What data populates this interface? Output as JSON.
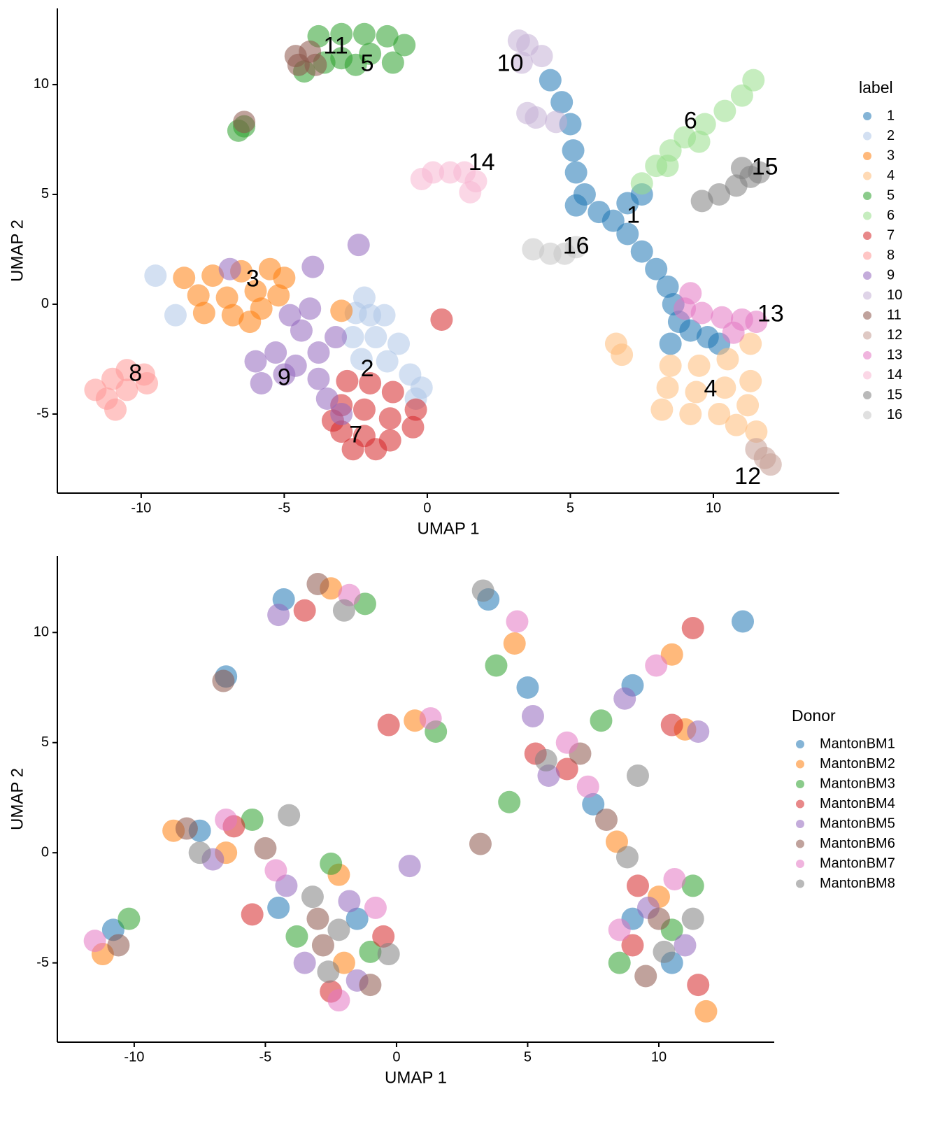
{
  "chart_data": [
    {
      "type": "scatter",
      "xlabel": "UMAP 1",
      "ylabel": "UMAP 2",
      "legend_title": "label",
      "legend_position": "right",
      "xlim": [
        -12.93,
        14.4
      ],
      "ylim": [
        -8.6,
        13.47
      ],
      "xticks": [
        -10,
        -5,
        0,
        5,
        10
      ],
      "yticks": [
        -5,
        0,
        5,
        10
      ],
      "series": [
        {
          "name": "1",
          "color": "#1f77b4",
          "x": [
            4.3,
            4.7,
            5,
            5.1,
            5.2,
            5.5,
            5.2,
            6,
            6.5,
            7,
            7.5,
            7,
            7.5,
            8,
            8.4,
            8.6,
            8.8,
            9.2,
            9.8,
            8.5,
            10.2
          ],
          "y": [
            10.2,
            9.2,
            8.2,
            7,
            6,
            5,
            4.5,
            4.2,
            3.8,
            4.6,
            5,
            3.2,
            2.4,
            1.6,
            0.8,
            0,
            -0.8,
            -1.2,
            -1.5,
            -1.8,
            -1.8
          ]
        },
        {
          "name": "2",
          "color": "#aec7e8",
          "x": [
            -2.5,
            -2,
            -1.5,
            -2.6,
            -1.8,
            -1,
            -2.3,
            -1.4,
            -0.6,
            -0.2,
            -0.4,
            -2.2,
            -9.5,
            -8.8
          ],
          "y": [
            -0.4,
            -0.5,
            -0.5,
            -1.5,
            -1.5,
            -1.8,
            -2.5,
            -2.6,
            -3.2,
            -3.8,
            -4.3,
            0.3,
            1.3,
            -0.5
          ]
        },
        {
          "name": "3",
          "color": "#ff7f0e",
          "x": [
            -8.5,
            -7.5,
            -6.5,
            -5.5,
            -5,
            -8,
            -7,
            -6,
            -5.2,
            -7.8,
            -6.8,
            -5.8,
            -6.2,
            -3
          ],
          "y": [
            1.2,
            1.3,
            1.5,
            1.6,
            1.2,
            0.4,
            0.3,
            0.6,
            0.4,
            -0.4,
            -0.5,
            -0.2,
            -0.8,
            -0.3
          ]
        },
        {
          "name": "4",
          "color": "#ffbb78",
          "x": [
            8.5,
            9.5,
            10.5,
            11.3,
            8.4,
            9.4,
            10.4,
            11.3,
            8.2,
            9.2,
            10.2,
            11.2,
            10.8,
            11.5,
            6.6,
            6.8
          ],
          "y": [
            -2.8,
            -2.8,
            -2.5,
            -1.8,
            -3.8,
            -4,
            -3.8,
            -3.5,
            -4.8,
            -5,
            -5,
            -4.6,
            -5.5,
            -5.8,
            -1.8,
            -2.3
          ]
        },
        {
          "name": "5",
          "color": "#2ca02c",
          "x": [
            -3.8,
            -3,
            -2.2,
            -1.4,
            -0.8,
            -1.2,
            -2,
            -3,
            -3.6,
            -4.3,
            -2.5,
            -6.6,
            -6.4
          ],
          "y": [
            12.2,
            12.3,
            12.3,
            12.2,
            11.8,
            11,
            11.4,
            11.2,
            11,
            10.6,
            10.9,
            7.9,
            8.1
          ]
        },
        {
          "name": "6",
          "color": "#98df8a",
          "x": [
            7.5,
            8,
            8.5,
            9,
            9.7,
            10.4,
            11,
            11.4,
            8.4,
            9.5
          ],
          "y": [
            5.5,
            6.3,
            7,
            7.6,
            8.2,
            8.8,
            9.5,
            10.2,
            6.3,
            7.4
          ]
        },
        {
          "name": "7",
          "color": "#d62728",
          "x": [
            -2.8,
            -2,
            -1.2,
            -0.4,
            -3,
            -2.2,
            -1.3,
            -0.5,
            -3,
            -2.2,
            -1.3,
            -2.6,
            -1.8,
            -3.3,
            0.5
          ],
          "y": [
            -3.5,
            -3.6,
            -4,
            -4.8,
            -4.6,
            -4.8,
            -5.2,
            -5.6,
            -5.8,
            -6,
            -6.2,
            -6.6,
            -6.6,
            -5.3,
            -0.7
          ]
        },
        {
          "name": "8",
          "color": "#ff9896",
          "x": [
            -11.6,
            -11,
            -10.5,
            -9.9,
            -10.5,
            -11.2,
            -10.9,
            -9.8
          ],
          "y": [
            -3.9,
            -3.4,
            -3,
            -3.2,
            -3.9,
            -4.3,
            -4.8,
            -3.6
          ]
        },
        {
          "name": "9",
          "color": "#9467bd",
          "x": [
            -4.8,
            -4.4,
            -5.3,
            -6,
            -4.6,
            -3.8,
            -3.8,
            -3.5,
            -3,
            -5,
            -3.2,
            -4.1,
            -2.4,
            -4,
            -6.9,
            -5.8
          ],
          "y": [
            -0.5,
            -1.2,
            -2.2,
            -2.6,
            -2.8,
            -2.2,
            -3.4,
            -4.3,
            -5,
            -3.2,
            -1.5,
            -0.2,
            2.7,
            1.7,
            1.6,
            -3.6
          ]
        },
        {
          "name": "10",
          "color": "#c5b0d5",
          "x": [
            3.2,
            3.5,
            4,
            3.3,
            3.8,
            3.5,
            4.5
          ],
          "y": [
            12,
            11.8,
            11.3,
            11,
            8.5,
            8.7,
            8.3
          ]
        },
        {
          "name": "11",
          "color": "#8c564b",
          "x": [
            -4.6,
            -4.1,
            -4.5,
            -3.9,
            -6.4
          ],
          "y": [
            11.3,
            11.5,
            10.9,
            10.9,
            8.3
          ]
        },
        {
          "name": "12",
          "color": "#c49c94",
          "x": [
            11.5,
            12,
            11.8
          ],
          "y": [
            -6.6,
            -7.3,
            -7
          ]
        },
        {
          "name": "13",
          "color": "#e377c2",
          "x": [
            9,
            9.6,
            10.3,
            11,
            11.5,
            10.7,
            9.2
          ],
          "y": [
            -0.2,
            -0.4,
            -0.6,
            -0.7,
            -0.8,
            -1.3,
            0.5
          ]
        },
        {
          "name": "14",
          "color": "#f7b6d2",
          "x": [
            0.2,
            0.8,
            1.3,
            1.7,
            1.5,
            -0.2
          ],
          "y": [
            6,
            6,
            6,
            5.6,
            5.1,
            5.7
          ]
        },
        {
          "name": "15",
          "color": "#7f7f7f",
          "x": [
            10.8,
            11.3,
            11.6,
            11,
            10.2,
            9.6
          ],
          "y": [
            5.4,
            5.8,
            6,
            6.2,
            5,
            4.7
          ]
        },
        {
          "name": "16",
          "color": "#c7c7c7",
          "x": [
            4.3,
            4.8,
            5.2,
            3.7
          ],
          "y": [
            2.3,
            2.3,
            2.6,
            2.5
          ]
        }
      ],
      "annotations": [
        {
          "text": "11",
          "x": -3.2,
          "y": 11.7
        },
        {
          "text": "5",
          "x": -2.1,
          "y": 10.9
        },
        {
          "text": "10",
          "x": 2.9,
          "y": 10.9
        },
        {
          "text": "6",
          "x": 9.2,
          "y": 8.3
        },
        {
          "text": "14",
          "x": 1.9,
          "y": 6.4
        },
        {
          "text": "15",
          "x": 11.8,
          "y": 6.2
        },
        {
          "text": "1",
          "x": 7.2,
          "y": 4
        },
        {
          "text": "16",
          "x": 5.2,
          "y": 2.6
        },
        {
          "text": "3",
          "x": -6.1,
          "y": 1.1
        },
        {
          "text": "13",
          "x": 12,
          "y": -0.5
        },
        {
          "text": "8",
          "x": -10.2,
          "y": -3.2
        },
        {
          "text": "9",
          "x": -5,
          "y": -3.4
        },
        {
          "text": "2",
          "x": -2.1,
          "y": -3
        },
        {
          "text": "4",
          "x": 9.9,
          "y": -3.9
        },
        {
          "text": "7",
          "x": -2.5,
          "y": -6
        },
        {
          "text": "12",
          "x": 11.2,
          "y": -7.9
        }
      ]
    },
    {
      "type": "scatter",
      "xlabel": "UMAP 1",
      "ylabel": "UMAP 2",
      "legend_title": "Donor",
      "legend_position": "right",
      "xlim": [
        -12.93,
        14.4
      ],
      "ylim": [
        -8.6,
        13.47
      ],
      "xticks": [
        -10,
        -5,
        0,
        5,
        10
      ],
      "yticks": [
        -5,
        0,
        5,
        10
      ],
      "series": [
        {
          "name": "MantonBM1",
          "color": "#1f77b4",
          "x": [
            -4.3,
            -6.5,
            3.5,
            5,
            9,
            7.5,
            9,
            10.5,
            -7.5,
            -4.5,
            -1.5,
            -10.8,
            13.2
          ],
          "y": [
            11.5,
            8,
            11.5,
            7.5,
            7.6,
            2.2,
            -3,
            -5,
            1,
            -2.5,
            -3,
            -3.5,
            10.5
          ]
        },
        {
          "name": "MantonBM2",
          "color": "#ff7f0e",
          "x": [
            -2.5,
            0.7,
            4.5,
            10.5,
            11,
            8.4,
            10,
            11.8,
            -8.5,
            -6.5,
            -2.2,
            -11.2,
            -2
          ],
          "y": [
            12,
            6,
            9.5,
            9,
            5.6,
            0.5,
            -2,
            -7.2,
            1,
            0,
            -1,
            -4.6,
            -5
          ]
        },
        {
          "name": "MantonBM3",
          "color": "#2ca02c",
          "x": [
            -1.2,
            1.5,
            3.8,
            7.8,
            4.3,
            10.5,
            8.5,
            -5.5,
            -3.8,
            -2.5,
            -1,
            -10.2,
            11.3
          ],
          "y": [
            11.3,
            5.5,
            8.5,
            6,
            2.3,
            -3.5,
            -5,
            1.5,
            -3.8,
            -0.5,
            -4.5,
            -3,
            -1.5
          ]
        },
        {
          "name": "MantonBM4",
          "color": "#d62728",
          "x": [
            -3.5,
            -0.3,
            5.3,
            6.5,
            11.3,
            10.5,
            9.2,
            9,
            -6.2,
            -5.5,
            -0.5,
            -2.5,
            11.5
          ],
          "y": [
            11,
            5.8,
            4.5,
            3.8,
            10.2,
            5.8,
            -1.5,
            -4.2,
            1.2,
            -2.8,
            -3.8,
            -6.3,
            -6
          ]
        },
        {
          "name": "MantonBM5",
          "color": "#9467bd",
          "x": [
            -4.5,
            5.2,
            8.7,
            11.5,
            5.8,
            9.6,
            11,
            -7,
            -4.2,
            -1.8,
            -1.5,
            -3.5,
            0.5
          ],
          "y": [
            10.8,
            6.2,
            7,
            5.5,
            3.5,
            -2.5,
            -4.2,
            -0.3,
            -1.5,
            -2.2,
            -5.8,
            -5,
            -0.6
          ]
        },
        {
          "name": "MantonBM6",
          "color": "#8c564b",
          "x": [
            -3,
            -6.6,
            7,
            8,
            10,
            9.5,
            -8,
            -5,
            -3,
            -2.8,
            -1,
            -10.6,
            3.2
          ],
          "y": [
            12.2,
            7.8,
            4.5,
            1.5,
            -3,
            -5.6,
            1.1,
            0.2,
            -3,
            -4.2,
            -6,
            -4.2,
            0.4
          ]
        },
        {
          "name": "MantonBM7",
          "color": "#e377c2",
          "x": [
            -1.8,
            1.3,
            4.6,
            6.5,
            9.9,
            7.3,
            10.6,
            8.5,
            -6.5,
            -4.6,
            -0.8,
            -2.2,
            -11.5
          ],
          "y": [
            11.7,
            6.1,
            10.5,
            5,
            8.5,
            3,
            -1.2,
            -3.5,
            1.5,
            -0.8,
            -2.5,
            -6.7,
            -4
          ]
        },
        {
          "name": "MantonBM8",
          "color": "#7f7f7f",
          "x": [
            -2,
            3.3,
            5.7,
            9.2,
            8.8,
            10.2,
            11.3,
            -7.5,
            -3.2,
            -2.2,
            -2.6,
            -0.3,
            -4.1
          ],
          "y": [
            11,
            11.9,
            4.2,
            3.5,
            -0.2,
            -4.5,
            -3,
            0,
            -2,
            -3.5,
            -5.4,
            -4.6,
            1.7
          ]
        }
      ]
    }
  ]
}
